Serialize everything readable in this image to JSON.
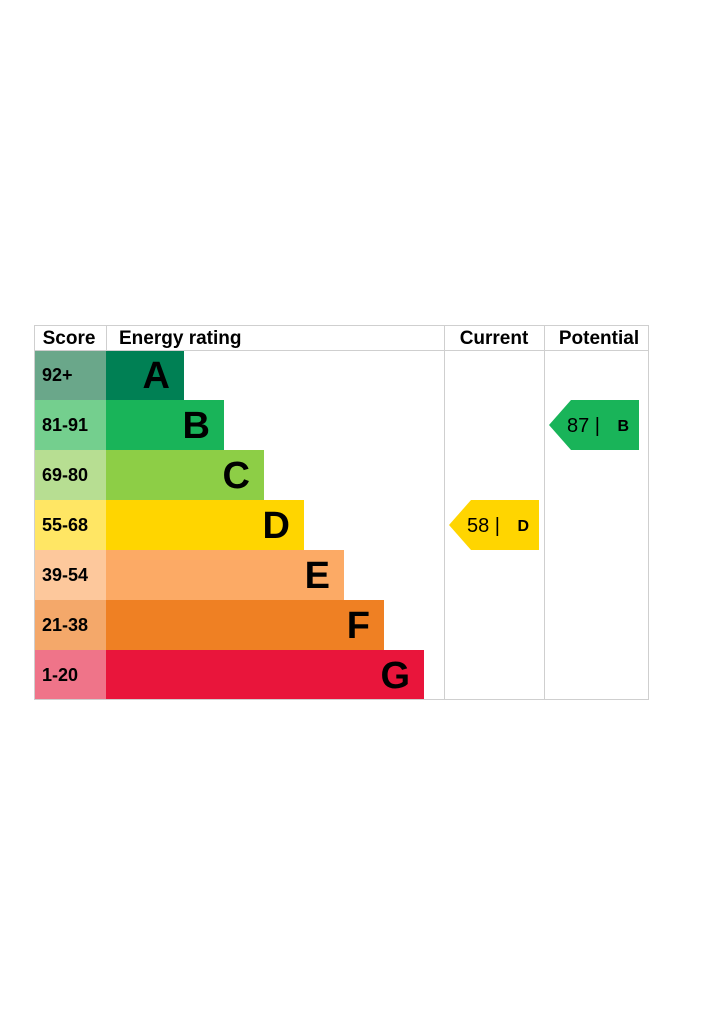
{
  "chart_data": {
    "type": "bar",
    "headers": {
      "score": "Score",
      "rating": "Energy rating",
      "current": "Current",
      "potential": "Potential"
    },
    "bands": [
      {
        "letter": "A",
        "score": "92+",
        "min": 92,
        "max": 100,
        "color": "#008054",
        "score_bg": "#6aa78a"
      },
      {
        "letter": "B",
        "score": "81-91",
        "min": 81,
        "max": 91,
        "color": "#19b459",
        "score_bg": "#74cf8e"
      },
      {
        "letter": "C",
        "score": "69-80",
        "min": 69,
        "max": 80,
        "color": "#8dce46",
        "score_bg": "#b7de92"
      },
      {
        "letter": "D",
        "score": "55-68",
        "min": 55,
        "max": 68,
        "color": "#ffd500",
        "score_bg": "#ffe664"
      },
      {
        "letter": "E",
        "score": "39-54",
        "min": 39,
        "max": 54,
        "color": "#fcaa65",
        "score_bg": "#fdc89c"
      },
      {
        "letter": "F",
        "score": "21-38",
        "min": 21,
        "max": 38,
        "color": "#ef8023",
        "score_bg": "#f4a86a"
      },
      {
        "letter": "G",
        "score": "1-20",
        "min": 1,
        "max": 20,
        "color": "#e9153b",
        "score_bg": "#ef7489"
      }
    ],
    "current": {
      "value": 58,
      "band": "D",
      "label_value": "58 |",
      "label_band": "D"
    },
    "potential": {
      "value": 87,
      "band": "B",
      "label_value": "87 |",
      "label_band": "B"
    }
  }
}
